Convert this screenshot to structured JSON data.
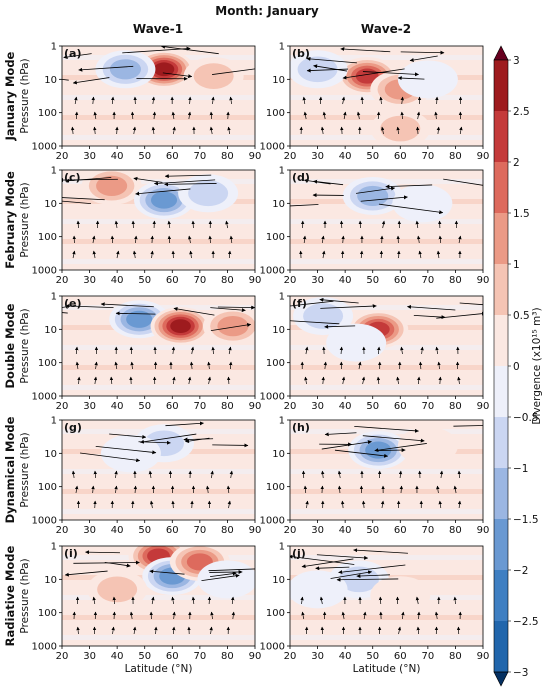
{
  "title": "Month: January",
  "columns": [
    "Wave-1",
    "Wave-2"
  ],
  "rows": [
    {
      "mode": "January Mode",
      "ylabel": "Pressure (hPa)"
    },
    {
      "mode": "February Mode",
      "ylabel": "Pressure (hPa)"
    },
    {
      "mode": "Double Mode",
      "ylabel": "Pressure (hPa)"
    },
    {
      "mode": "Dynamical Mode",
      "ylabel": "Pressure (hPa)"
    },
    {
      "mode": "Radiative Mode",
      "ylabel": "Pressure (hPa)"
    }
  ],
  "xlabel": "Latitude (°N)",
  "colorbar": {
    "label": "Divergence (x10¹⁵ m³)",
    "levels": [
      -3,
      -2.5,
      -2,
      -1.5,
      -1,
      -0.5,
      0,
      0.5,
      1,
      1.5,
      2,
      2.5,
      3
    ],
    "tick_labels": [
      "3",
      "2.5",
      "2",
      "1.5",
      "1",
      "0.5",
      "0",
      "−0.5",
      "−1",
      "−1.5",
      "−2",
      "−2.5",
      "−3"
    ],
    "colors": [
      "#053061",
      "#2166ac",
      "#3f7fc2",
      "#6a99d2",
      "#9bb6e2",
      "#cbd6f2",
      "#eef0fa",
      "#fbe8e2",
      "#f5c4b4",
      "#eb9a86",
      "#dd6a5d",
      "#c43a3a",
      "#9e1b1e",
      "#67001f"
    ]
  },
  "chart_data": {
    "type": "heatmap",
    "x": {
      "label": "Latitude (°N)",
      "lim": [
        20,
        90
      ],
      "ticks": [
        20,
        30,
        40,
        50,
        60,
        70,
        80,
        90
      ]
    },
    "y": {
      "label": "Pressure (hPa)",
      "lim": [
        1000,
        1
      ],
      "scale": "log",
      "ticks": [
        1,
        10,
        100,
        1000
      ]
    },
    "color_range": [
      -3,
      3
    ],
    "panels": [
      {
        "label": "(a)",
        "row": "January Mode",
        "col": "Wave-1",
        "blobs": [
          {
            "lat": 57,
            "p": 5,
            "value": 3
          },
          {
            "lat": 43,
            "p": 5,
            "value": -1.5
          },
          {
            "lat": 75,
            "p": 8,
            "value": 1
          }
        ]
      },
      {
        "label": "(b)",
        "row": "January Mode",
        "col": "Wave-2",
        "blobs": [
          {
            "lat": 48,
            "p": 8,
            "value": 2.5
          },
          {
            "lat": 60,
            "p": 20,
            "value": 1.5
          },
          {
            "lat": 30,
            "p": 5,
            "value": -1
          },
          {
            "lat": 70,
            "p": 10,
            "value": -0.5
          },
          {
            "lat": 60,
            "p": 300,
            "value": 1
          }
        ]
      },
      {
        "label": "(c)",
        "row": "February Mode",
        "col": "Wave-1",
        "blobs": [
          {
            "lat": 38,
            "p": 3,
            "value": 1.5
          },
          {
            "lat": 57,
            "p": 8,
            "value": -2
          },
          {
            "lat": 73,
            "p": 5,
            "value": -1
          }
        ]
      },
      {
        "label": "(d)",
        "row": "February Mode",
        "col": "Wave-2",
        "blobs": [
          {
            "lat": 50,
            "p": 6,
            "value": -1.5
          },
          {
            "lat": 68,
            "p": 10,
            "value": -0.5
          }
        ]
      },
      {
        "label": "(e)",
        "row": "Double Mode",
        "col": "Wave-1",
        "blobs": [
          {
            "lat": 48,
            "p": 5,
            "value": -2
          },
          {
            "lat": 63,
            "p": 8,
            "value": 3
          },
          {
            "lat": 82,
            "p": 8,
            "value": 1.5
          }
        ]
      },
      {
        "label": "(f)",
        "row": "Double Mode",
        "col": "Wave-2",
        "blobs": [
          {
            "lat": 52,
            "p": 10,
            "value": 2.5
          },
          {
            "lat": 32,
            "p": 4,
            "value": -1
          },
          {
            "lat": 44,
            "p": 25,
            "value": -0.5
          }
        ]
      },
      {
        "label": "(g)",
        "row": "Dynamical Mode",
        "col": "Wave-1",
        "blobs": [
          {
            "lat": 57,
            "p": 5,
            "value": -1
          },
          {
            "lat": 45,
            "p": 10,
            "value": -0.5
          }
        ]
      },
      {
        "label": "(h)",
        "row": "Dynamical Mode",
        "col": "Wave-2",
        "blobs": [
          {
            "lat": 52,
            "p": 8,
            "value": -2
          },
          {
            "lat": 70,
            "p": 6,
            "value": 0.5
          }
        ]
      },
      {
        "label": "(i)",
        "row": "Radiative Mode",
        "col": "Wave-1",
        "blobs": [
          {
            "lat": 55,
            "p": 2,
            "value": 2.5
          },
          {
            "lat": 60,
            "p": 8,
            "value": -2
          },
          {
            "lat": 70,
            "p": 3,
            "value": 2
          },
          {
            "lat": 40,
            "p": 20,
            "value": 1
          },
          {
            "lat": 80,
            "p": 10,
            "value": -0.5
          }
        ]
      },
      {
        "label": "(j)",
        "row": "Radiative Mode",
        "col": "Wave-2",
        "blobs": [
          {
            "lat": 45,
            "p": 10,
            "value": -1
          },
          {
            "lat": 30,
            "p": 20,
            "value": -0.5
          },
          {
            "lat": 60,
            "p": 30,
            "value": 0.5
          }
        ]
      }
    ]
  }
}
